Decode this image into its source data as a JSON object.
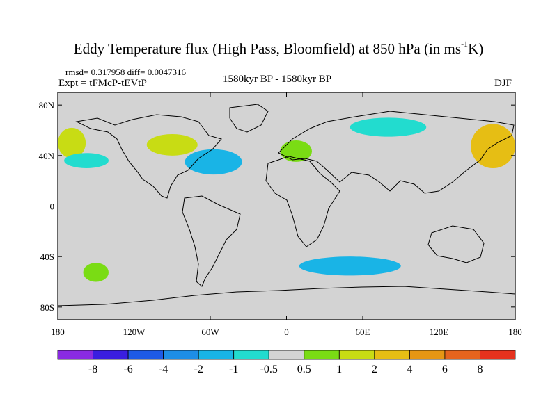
{
  "title_main": "Eddy Temperature flux (High Pass, Bloomfield) at 850 hPa (in ms",
  "title_sup": "-1",
  "title_end": "K)",
  "stats": "rmsd= 0.317958 diff= 0.0047316",
  "experiment": "Expt = tFMcP-tEVtP",
  "period": "1580kyr BP - 1580kyr BP",
  "season": "DJF",
  "x_ticks": [
    "180",
    "120W",
    "60W",
    "0",
    "60E",
    "120E",
    "180"
  ],
  "y_ticks": [
    "80N",
    "40N",
    "0",
    "40S",
    "80S"
  ],
  "colorbar": {
    "labels": [
      "-8",
      "-6",
      "-4",
      "-2",
      "-1",
      "-0.5",
      "0.5",
      "1",
      "2",
      "4",
      "6",
      "8"
    ],
    "colors": [
      "#8a2be2",
      "#3a1ee0",
      "#1e5ae6",
      "#1e8ee6",
      "#19b4e6",
      "#22dccf",
      "#d3d3d3",
      "#7adc14",
      "#c8dc14",
      "#e6be14",
      "#e69614",
      "#e6641e",
      "#e6321e"
    ]
  },
  "land_color": "#d3d3d3",
  "chart_data": {
    "type": "heatmap",
    "xlim": [
      -180,
      180
    ],
    "ylim": [
      -90,
      90
    ],
    "regions": [
      {
        "name": "N Pacific west",
        "level": "1 to 2",
        "lon": [
          -180,
          -158
        ],
        "lat": [
          38,
          62
        ]
      },
      {
        "name": "N Pacific east",
        "level": "-1 to -0.5",
        "lon": [
          -175,
          -140
        ],
        "lat": [
          30,
          42
        ]
      },
      {
        "name": "N America",
        "level": "1 to 2",
        "lon": [
          -110,
          -70
        ],
        "lat": [
          40,
          57
        ]
      },
      {
        "name": "W Atlantic",
        "level": "-2 to -1",
        "lon": [
          -80,
          -35
        ],
        "lat": [
          25,
          45
        ]
      },
      {
        "name": "Europe",
        "level": "0.5 to 1",
        "lon": [
          -5,
          20
        ],
        "lat": [
          35,
          52
        ]
      },
      {
        "name": "Siberia",
        "level": "-1 to -0.5",
        "lon": [
          50,
          110
        ],
        "lat": [
          55,
          70
        ]
      },
      {
        "name": "NW Pacific",
        "level": "2 to 4",
        "lon": [
          145,
          180
        ],
        "lat": [
          30,
          65
        ]
      },
      {
        "name": "Southern Ocean",
        "level": "-2 to -1",
        "lon": [
          10,
          90
        ],
        "lat": [
          -55,
          -40
        ]
      },
      {
        "name": "S Pacific",
        "level": "0.5 to 1",
        "lon": [
          -160,
          -140
        ],
        "lat": [
          -60,
          -45
        ]
      }
    ]
  }
}
